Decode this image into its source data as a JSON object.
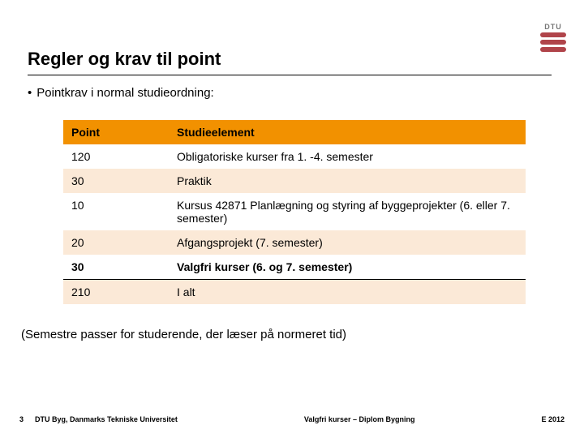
{
  "logo": {
    "text": "DTU",
    "bar_color": "#b0444a"
  },
  "title": "Regler og krav til point",
  "bullet": "Pointkrav i normal studieordning:",
  "table": {
    "header_bg": "#f29100",
    "row_alt_bg": "#fbe9d7",
    "row_bg": "#ffffff",
    "columns": [
      "Point",
      "Studieelement"
    ],
    "rows": [
      {
        "points": "120",
        "element": "Obligatoriske kurser fra 1. -4. semester",
        "bold": false,
        "rule": false
      },
      {
        "points": "30",
        "element": "Praktik",
        "bold": false,
        "rule": false
      },
      {
        "points": "10",
        "element": "Kursus 42871 Planlægning og styring af byggeprojekter (6. eller 7. semester)",
        "bold": false,
        "rule": false
      },
      {
        "points": "20",
        "element": "Afgangsprojekt (7. semester)",
        "bold": false,
        "rule": false
      },
      {
        "points": "30",
        "element": "Valgfri kurser (6. og 7. semester)",
        "bold": true,
        "rule": true
      },
      {
        "points": "210",
        "element": "I alt",
        "bold": false,
        "rule": false
      }
    ]
  },
  "note": "(Semestre passer for studerende, der læser på normeret tid)",
  "footer": {
    "page": "3",
    "org": "DTU Byg, Danmarks Tekniske Universitet",
    "center": "Valgfri kurser – Diplom Bygning",
    "right": "E 2012"
  }
}
